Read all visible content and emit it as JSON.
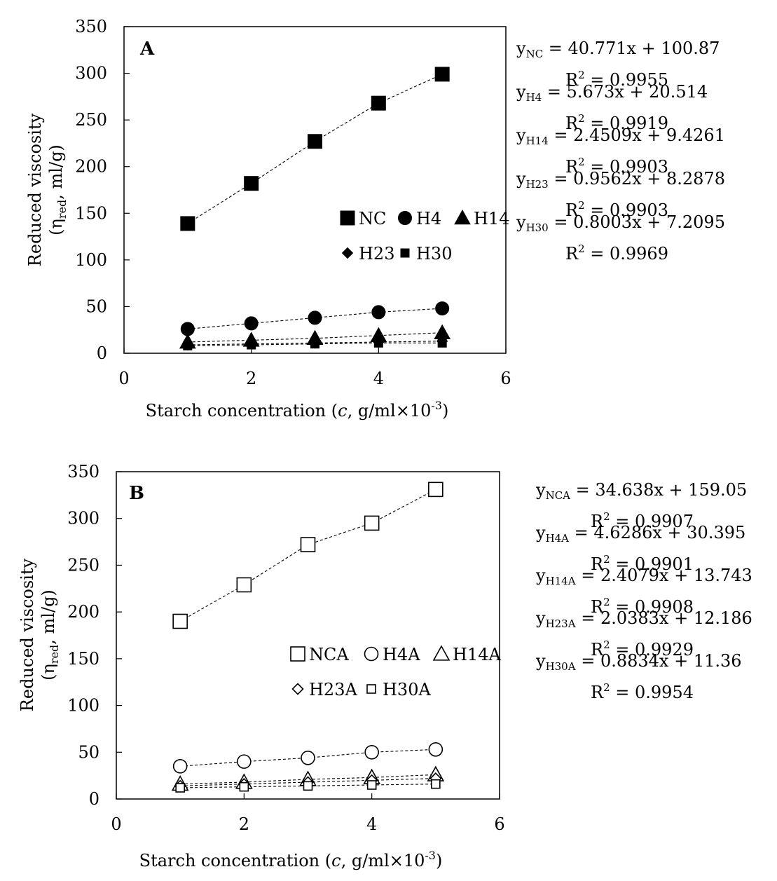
{
  "chart_data": [
    {
      "type": "scatter",
      "panel_label": "A",
      "xlabel": {
        "prefix": "Starch concentration (",
        "var": "c",
        "mid": ", g/ml×10",
        "sup": "-3",
        "suffix": ")"
      },
      "ylabel": {
        "line1": "Reduced viscosity",
        "line2_prefix": "(η",
        "line2_sub": "red",
        "line2_suffix": ", ml/g)"
      },
      "xlim": [
        0,
        6
      ],
      "ylim": [
        0,
        350
      ],
      "xticks": [
        "0",
        "2",
        "4",
        "6"
      ],
      "yticks": [
        "0",
        "50",
        "100",
        "150",
        "200",
        "250",
        "300",
        "350"
      ],
      "grid": false,
      "legend": "center-right",
      "x": [
        1,
        2,
        3,
        4,
        5
      ],
      "series": [
        {
          "name": "NC",
          "marker": "square",
          "filled": true,
          "size": "large",
          "values": [
            139,
            182,
            227,
            268,
            299
          ]
        },
        {
          "name": "H4",
          "marker": "circle",
          "filled": true,
          "size": "large",
          "values": [
            26,
            32,
            38,
            44,
            48
          ]
        },
        {
          "name": "H14",
          "marker": "triangle",
          "filled": true,
          "size": "large",
          "values": [
            12,
            14,
            16,
            19,
            22
          ]
        },
        {
          "name": "H23",
          "marker": "diamond",
          "filled": true,
          "size": "small",
          "values": [
            9,
            10,
            11,
            12,
            13
          ]
        },
        {
          "name": "H30",
          "marker": "square",
          "filled": true,
          "size": "small",
          "values": [
            8,
            9,
            10,
            11,
            11
          ]
        }
      ],
      "equations": [
        {
          "y": "y",
          "sub": "NC",
          "rhs": " = 40.771x + 100.87",
          "r2_label": "R",
          "r2_sup": "2",
          "r2_value": " = 0.9955"
        },
        {
          "y": "y",
          "sub": "H4",
          "rhs": " = 5.673x + 20.514",
          "r2_label": "R",
          "r2_sup": "2",
          "r2_value": " = 0.9919"
        },
        {
          "y": "y",
          "sub": "H14",
          "rhs": " = 2.4509x + 9.4261",
          "r2_label": "R",
          "r2_sup": "2",
          "r2_value": " = 0.9903"
        },
        {
          "y": "y",
          "sub": "H23",
          "rhs": " = 0.9562x + 8.2878",
          "r2_label": "R",
          "r2_sup": "2",
          "r2_value": " = 0.9903"
        },
        {
          "y": "y",
          "sub": "H30",
          "rhs": " = 0.8003x + 7.2095",
          "r2_label": "R",
          "r2_sup": "2",
          "r2_value": " = 0.9969"
        }
      ]
    },
    {
      "type": "scatter",
      "panel_label": "B",
      "xlabel": {
        "prefix": "Starch concentration (",
        "var": "c",
        "mid": ", g/ml×10",
        "sup": "-3",
        "suffix": ")"
      },
      "ylabel": {
        "line1": "Reduced viscosity",
        "line2_prefix": "(η",
        "line2_sub": "red",
        "line2_suffix": ", ml/g)"
      },
      "xlim": [
        0,
        6
      ],
      "ylim": [
        0,
        350
      ],
      "xticks": [
        "0",
        "2",
        "4",
        "6"
      ],
      "yticks": [
        "0",
        "50",
        "100",
        "150",
        "200",
        "250",
        "300",
        "350"
      ],
      "grid": false,
      "legend": "center-right",
      "x": [
        1,
        2,
        3,
        4,
        5
      ],
      "series": [
        {
          "name": "NCA",
          "marker": "square",
          "filled": false,
          "size": "large",
          "values": [
            190,
            229,
            272,
            295,
            331
          ]
        },
        {
          "name": "H4A",
          "marker": "circle",
          "filled": false,
          "size": "large",
          "values": [
            35,
            40,
            44,
            50,
            53
          ]
        },
        {
          "name": "H14A",
          "marker": "triangle",
          "filled": false,
          "size": "large",
          "values": [
            16,
            18,
            21,
            23,
            26
          ]
        },
        {
          "name": "H23A",
          "marker": "diamond",
          "filled": false,
          "size": "small",
          "values": [
            14,
            16,
            18,
            20,
            22
          ]
        },
        {
          "name": "H30A",
          "marker": "square",
          "filled": false,
          "size": "small",
          "values": [
            12,
            13,
            14,
            15,
            16
          ]
        }
      ],
      "equations": [
        {
          "y": "y",
          "sub": "NCA",
          "rhs": " = 34.638x + 159.05",
          "r2_label": "R",
          "r2_sup": "2",
          "r2_value": " = 0.9907"
        },
        {
          "y": "y",
          "sub": "H4A",
          "rhs": " = 4.6286x + 30.395",
          "r2_label": "R",
          "r2_sup": "2",
          "r2_value": " = 0.9901"
        },
        {
          "y": "y",
          "sub": "H14A",
          "rhs": " = 2.4079x + 13.743",
          "r2_label": "R",
          "r2_sup": "2",
          "r2_value": " = 0.9908"
        },
        {
          "y": "y",
          "sub": "H23A",
          "rhs": " = 2.0383x + 12.186",
          "r2_label": "R",
          "r2_sup": "2",
          "r2_value": " = 0.9929"
        },
        {
          "y": "y",
          "sub": "H30A",
          "rhs": " = 0.8834x + 11.36",
          "r2_label": "R",
          "r2_sup": "2",
          "r2_value": " = 0.9954"
        }
      ]
    }
  ]
}
